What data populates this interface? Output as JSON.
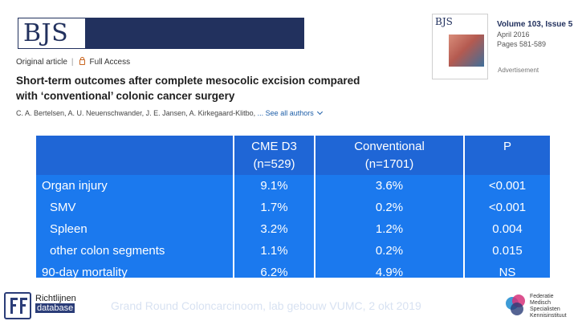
{
  "header": {
    "journal_logo": "BJS",
    "article_type": "Original article",
    "access_label": "Full Access",
    "title": "Short-term outcomes after complete mesocolic excision compared with ‘conventional’ colonic cancer surgery",
    "authors": "C. A. Bertelsen, A. U. Neuenschwander, J. E. Jansen, A. Kirkegaard-Klitbo,",
    "see_all": "... See all authors"
  },
  "issue": {
    "cover_title": "BJS",
    "volume": "Volume 103, Issue 5",
    "date": "April 2016",
    "pages": "Pages 581-589",
    "advertisement": "Advertisement"
  },
  "table": {
    "headers": [
      {
        "line1": "",
        "line2": ""
      },
      {
        "line1": "CME D3",
        "line2": "(n=529)"
      },
      {
        "line1": "Conventional",
        "line2": "(n=1701)"
      },
      {
        "line1": "P",
        "line2": ""
      }
    ],
    "rows": [
      {
        "label": "Organ injury",
        "cme": "9.1%",
        "conv": "3.6%",
        "p": "<0.001"
      },
      {
        "label": "SMV",
        "cme": "1.7%",
        "conv": "0.2%",
        "p": "<0.001"
      },
      {
        "label": "Spleen",
        "cme": "3.2%",
        "conv": "1.2%",
        "p": "0.004"
      },
      {
        "label": "other colon segments",
        "cme": "1.1%",
        "conv": "0.2%",
        "p": "0.015"
      },
      {
        "label": "90-day mortality",
        "cme": "6.2%",
        "conv": "4.9%",
        "p": "NS"
      }
    ]
  },
  "footer": {
    "text": "Grand Round Coloncarcinoom, lab gebouw VUMC, 2 okt 2019",
    "left_logo_line1": "Richtlijnen",
    "left_logo_line2": "database",
    "right_logo_line1": "Federatie",
    "right_logo_line2": "Medisch",
    "right_logo_line3": "Specialisten",
    "right_logo_line4": "Kennisinstituut"
  },
  "colors": {
    "table_header_bg": "#1f66d6",
    "table_body_bg": "#1b79ee",
    "journal_navy": "#22315e",
    "link_blue": "#1d5ea8"
  }
}
